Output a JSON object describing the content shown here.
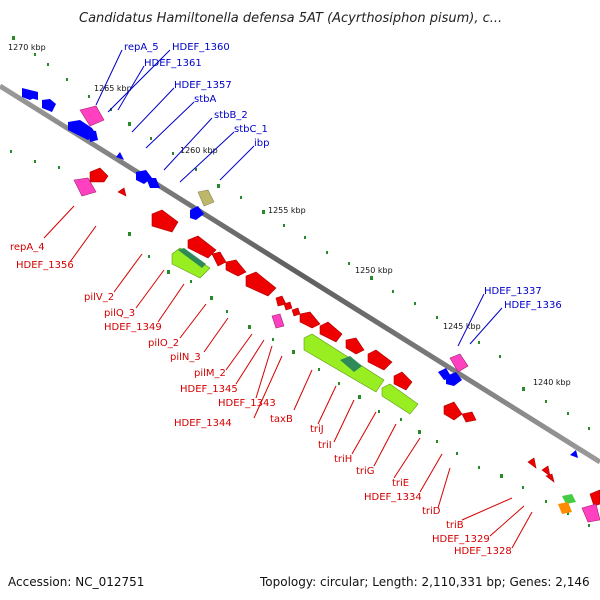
{
  "title": "Candidatus Hamiltonella defensa 5AT (Acyrthosiphon pisum), c...",
  "footer": {
    "accession": "Accession: NC_012751",
    "topology": "Topology: circular; Length: 2,110,331 bp; Genes: 2,146"
  },
  "scale_labels": [
    "1270 kbp",
    "1265 kbp",
    "1260 kbp",
    "1255 kbp",
    "1250 kbp",
    "1245 kbp",
    "1240 kbp"
  ],
  "gene_labels_forward": [
    "repA_5",
    "HDEF_1360",
    "HDEF_1361",
    "HDEF_1357",
    "stbA",
    "stbB_2",
    "stbC_1",
    "ibp",
    "HDEF_1337",
    "HDEF_1336"
  ],
  "gene_labels_reverse": [
    "repA_4",
    "HDEF_1356",
    "pilV_2",
    "pilQ_3",
    "HDEF_1349",
    "pilO_2",
    "pilN_3",
    "pilM_2",
    "HDEF_1345",
    "HDEF_1343",
    "HDEF_1344",
    "taxB",
    "triJ",
    "triI",
    "triH",
    "triG",
    "triE",
    "HDEF_1334",
    "triD",
    "triB",
    "HDEF_1329",
    "HDEF_1328"
  ],
  "colors": {
    "forward_genes": "#0000ff",
    "reverse_genes": "#ff0000",
    "backbone": "#808080",
    "gc_ticks": "#228b22",
    "pink_feature": "#ff40c0",
    "lime_feature": "#99ee22",
    "dark_green_feature": "#2e8b57",
    "olive_feature": "#bdb76b",
    "orange_feature": "#ff8c00",
    "green_feature": "#44cc44"
  }
}
